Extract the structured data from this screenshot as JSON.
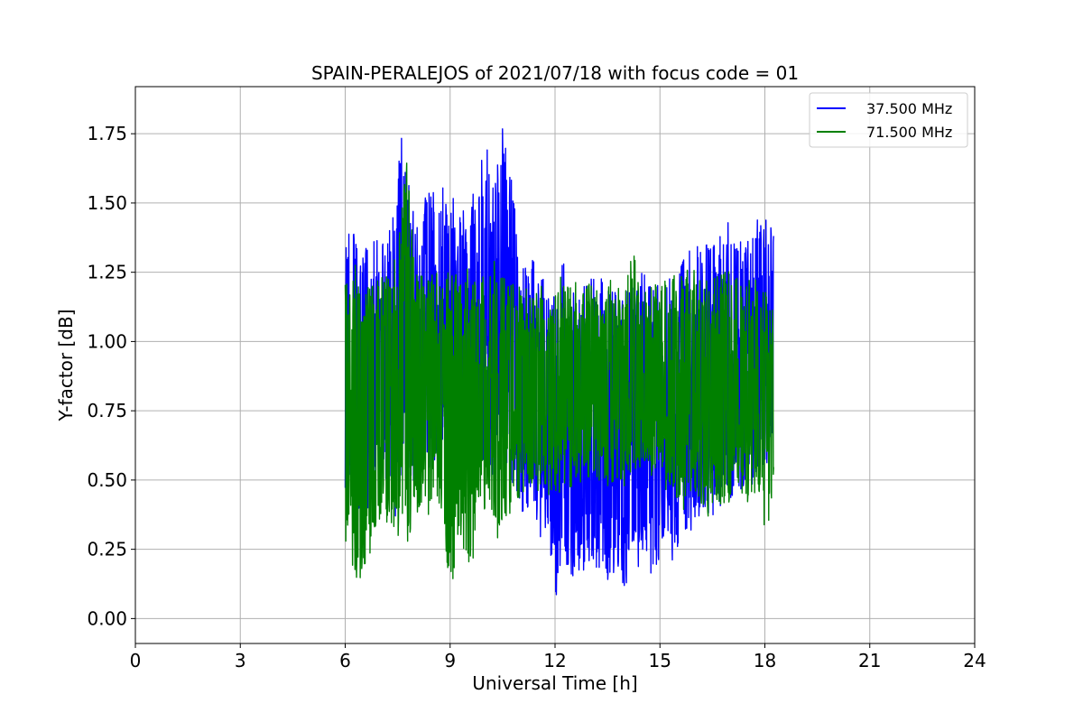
{
  "chart_data": {
    "type": "line",
    "title": "SPAIN-PERALEJOS of 2021/07/18 with focus code = 01",
    "xlabel": "Universal Time [h]",
    "ylabel": "Y-factor [dB]",
    "xlim": [
      0,
      24
    ],
    "ylim": [
      -0.09,
      1.92
    ],
    "xticks": [
      0,
      3,
      6,
      9,
      12,
      15,
      18,
      21,
      24
    ],
    "xtick_labels": [
      "0",
      "3",
      "6",
      "9",
      "12",
      "15",
      "18",
      "21",
      "24"
    ],
    "yticks": [
      0.0,
      0.25,
      0.5,
      0.75,
      1.0,
      1.25,
      1.5,
      1.75
    ],
    "ytick_labels": [
      "0.00",
      "0.25",
      "0.50",
      "0.75",
      "1.00",
      "1.25",
      "1.50",
      "1.75"
    ],
    "grid": true,
    "legend_position": "top-right",
    "series": [
      {
        "name": "37.500 MHz",
        "color": "#0000ff",
        "x": [
          6.0,
          6.25,
          6.5,
          6.75,
          7.0,
          7.25,
          7.5,
          7.75,
          8.0,
          8.25,
          8.5,
          8.75,
          9.0,
          9.25,
          9.5,
          9.75,
          10.0,
          10.25,
          10.5,
          10.75,
          11.0,
          11.25,
          11.5,
          11.75,
          12.0,
          12.25,
          12.5,
          12.75,
          13.0,
          13.25,
          13.5,
          13.75,
          14.0,
          14.25,
          14.5,
          14.75,
          15.0,
          15.25,
          15.5,
          15.75,
          16.0,
          16.25,
          16.5,
          16.75,
          17.0,
          17.25,
          17.5,
          17.75,
          18.0,
          18.25
        ],
        "y_max": [
          1.4,
          1.48,
          1.37,
          1.46,
          1.38,
          1.42,
          1.72,
          1.75,
          1.45,
          1.6,
          1.58,
          1.62,
          1.53,
          1.65,
          1.5,
          1.55,
          1.72,
          1.6,
          1.83,
          1.68,
          1.3,
          1.32,
          1.36,
          1.22,
          1.25,
          1.28,
          1.24,
          1.24,
          1.27,
          1.31,
          1.24,
          1.22,
          1.26,
          1.28,
          1.31,
          1.27,
          1.24,
          1.3,
          1.32,
          1.35,
          1.42,
          1.4,
          1.38,
          1.46,
          1.42,
          1.41,
          1.4,
          1.48,
          1.48,
          1.46
        ],
        "y_min": [
          0.42,
          0.35,
          0.3,
          0.38,
          0.42,
          0.4,
          0.36,
          0.45,
          0.4,
          0.46,
          0.5,
          0.55,
          0.58,
          0.5,
          0.55,
          0.52,
          0.48,
          0.45,
          0.5,
          0.42,
          0.35,
          0.3,
          0.25,
          0.2,
          0.0,
          0.15,
          0.1,
          0.1,
          0.15,
          0.12,
          0.08,
          0.14,
          0.05,
          0.12,
          0.15,
          0.1,
          0.18,
          0.22,
          0.2,
          0.25,
          0.28,
          0.3,
          0.32,
          0.35,
          0.38,
          0.4,
          0.42,
          0.45,
          0.5,
          0.6
        ]
      },
      {
        "name": "71.500 MHz",
        "color": "#008000",
        "x": [
          6.0,
          6.25,
          6.5,
          6.75,
          7.0,
          7.25,
          7.5,
          7.75,
          8.0,
          8.25,
          8.5,
          8.75,
          9.0,
          9.25,
          9.5,
          9.75,
          10.0,
          10.25,
          10.5,
          10.75,
          11.0,
          11.25,
          11.5,
          11.75,
          12.0,
          12.25,
          12.5,
          12.75,
          13.0,
          13.25,
          13.5,
          13.75,
          14.0,
          14.25,
          14.5,
          14.75,
          15.0,
          15.25,
          15.5,
          15.75,
          16.0,
          16.25,
          16.5,
          16.75,
          17.0,
          17.25,
          17.5,
          17.75,
          18.0,
          18.25
        ],
        "y_max": [
          1.25,
          1.28,
          1.25,
          1.3,
          1.27,
          1.35,
          1.35,
          1.75,
          1.3,
          1.27,
          1.3,
          1.27,
          1.35,
          1.3,
          1.26,
          1.28,
          1.27,
          1.29,
          1.28,
          1.26,
          1.25,
          1.22,
          1.25,
          1.21,
          1.2,
          1.25,
          1.22,
          1.2,
          1.25,
          1.22,
          1.27,
          1.23,
          1.22,
          1.38,
          1.22,
          1.24,
          1.25,
          1.27,
          1.28,
          1.3,
          1.32,
          1.33,
          1.3,
          1.28,
          1.3,
          1.31,
          1.26,
          1.29,
          1.22,
          1.18
        ],
        "y_min": [
          0.22,
          0.1,
          0.06,
          0.18,
          0.3,
          0.28,
          0.25,
          0.18,
          0.32,
          0.35,
          0.4,
          0.3,
          0.0,
          0.25,
          0.08,
          0.3,
          0.35,
          0.3,
          0.28,
          0.35,
          0.4,
          0.45,
          0.42,
          0.4,
          0.38,
          0.45,
          0.42,
          0.45,
          0.48,
          0.45,
          0.44,
          0.45,
          0.42,
          0.48,
          0.5,
          0.48,
          0.5,
          0.45,
          0.38,
          0.4,
          0.42,
          0.35,
          0.3,
          0.38,
          0.35,
          0.4,
          0.38,
          0.42,
          0.25,
          0.4
        ]
      }
    ]
  }
}
